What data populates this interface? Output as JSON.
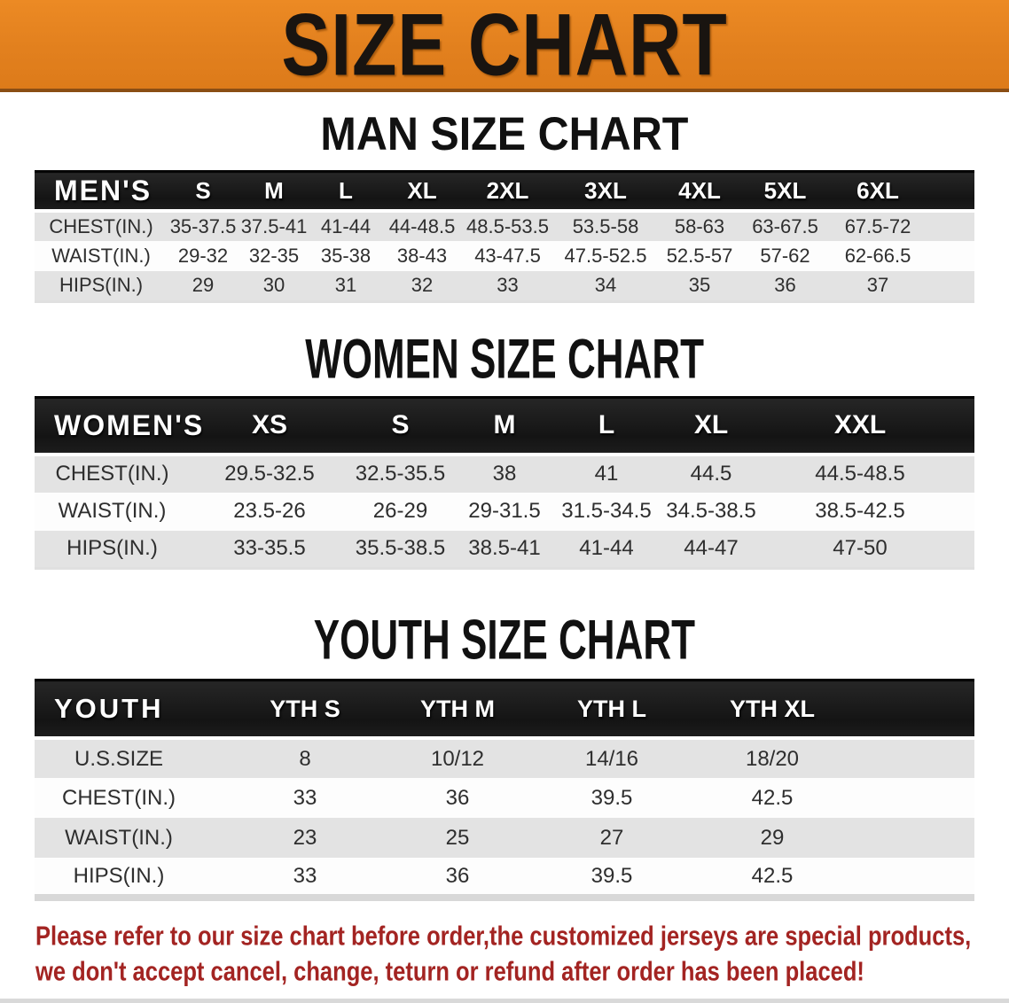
{
  "banner": {
    "title": "SIZE CHART"
  },
  "colors": {
    "banner_bg": "#E2801E",
    "banner_text": "#191410",
    "table_header_bar": "#1A1A1A",
    "row_gray": "#E3E3E3",
    "row_white": "#FDFDFD",
    "disclaimer_red": "#A32422"
  },
  "chart_data": [
    {
      "type": "table",
      "title": "MAN SIZE CHART",
      "corner_label": "MEN'S",
      "columns": [
        "S",
        "M",
        "L",
        "XL",
        "2XL",
        "3XL",
        "4XL",
        "5XL",
        "6XL"
      ],
      "rows": [
        {
          "label": "CHEST(IN.)",
          "values": [
            "35-37.5",
            "37.5-41",
            "41-44",
            "44-48.5",
            "48.5-53.5",
            "53.5-58",
            "58-63",
            "63-67.5",
            "67.5-72"
          ]
        },
        {
          "label": "WAIST(IN.)",
          "values": [
            "29-32",
            "32-35",
            "35-38",
            "38-43",
            "43-47.5",
            "47.5-52.5",
            "52.5-57",
            "57-62",
            "62-66.5"
          ]
        },
        {
          "label": "HIPS(IN.)",
          "values": [
            "29",
            "30",
            "31",
            "32",
            "33",
            "34",
            "35",
            "36",
            "37"
          ]
        }
      ]
    },
    {
      "type": "table",
      "title": "WOMEN SIZE CHART",
      "corner_label": "WOMEN'S",
      "columns": [
        "XS",
        "S",
        "M",
        "L",
        "XL",
        "XXL"
      ],
      "rows": [
        {
          "label": "CHEST(IN.)",
          "values": [
            "29.5-32.5",
            "32.5-35.5",
            "38",
            "41",
            "44.5",
            "44.5-48.5"
          ]
        },
        {
          "label": "WAIST(IN.)",
          "values": [
            "23.5-26",
            "26-29",
            "29-31.5",
            "31.5-34.5",
            "34.5-38.5",
            "38.5-42.5"
          ]
        },
        {
          "label": "HIPS(IN.)",
          "values": [
            "33-35.5",
            "35.5-38.5",
            "38.5-41",
            "41-44",
            "44-47",
            "47-50"
          ]
        }
      ]
    },
    {
      "type": "table",
      "title": "YOUTH SIZE CHART",
      "corner_label": "YOUTH",
      "columns": [
        "YTH S",
        "YTH M",
        "YTH L",
        "YTH XL"
      ],
      "rows": [
        {
          "label": "U.S.SIZE",
          "values": [
            "8",
            "10/12",
            "14/16",
            "18/20"
          ]
        },
        {
          "label": "CHEST(IN.)",
          "values": [
            "33",
            "36",
            "39.5",
            "42.5"
          ]
        },
        {
          "label": "WAIST(IN.)",
          "values": [
            "23",
            "25",
            "27",
            "29"
          ]
        },
        {
          "label": "HIPS(IN.)",
          "values": [
            "33",
            "36",
            "39.5",
            "42.5"
          ]
        }
      ]
    }
  ],
  "disclaimer": {
    "line1": "Please refer to our size chart before order,the customized jerseys are special products,",
    "line2": "we don't accept cancel, change, teturn or refund after order has been placed!"
  }
}
